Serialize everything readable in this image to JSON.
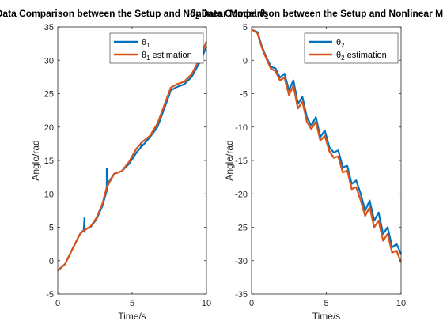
{
  "chart_data": [
    {
      "type": "line",
      "title_pre": "Data Comparison between the Setup and Nonlinear Model",
      "title_symbol": "θ",
      "title_sub": "1",
      "title_post": "",
      "xlabel": "Time/s",
      "ylabel": "Angle/rad",
      "xlim": [
        0,
        10
      ],
      "ylim": [
        -5,
        35
      ],
      "xticks": [
        0,
        5,
        10
      ],
      "yticks": [
        -5,
        0,
        5,
        10,
        15,
        20,
        25,
        30,
        35
      ],
      "legend_position": "top-right",
      "series": [
        {
          "name_symbol": "θ",
          "name_sub": "1",
          "name_rest": "",
          "color": "#0072BD",
          "x": [
            0,
            0.5,
            1.0,
            1.5,
            1.75,
            1.8,
            1.8,
            1.85,
            2.2,
            2.6,
            3.0,
            3.3,
            3.3,
            3.35,
            3.8,
            4.3,
            4.8,
            5.3,
            5.6,
            5.6,
            5.7,
            6.2,
            6.7,
            7.2,
            7.6,
            8.0,
            8.5,
            9.0,
            9.5,
            10.0
          ],
          "y": [
            -1.5,
            -0.5,
            1.8,
            4.0,
            4.6,
            6.4,
            4.3,
            4.7,
            5.0,
            6.2,
            8.2,
            10.5,
            13.8,
            11.5,
            13.0,
            13.4,
            14.5,
            16.2,
            17.0,
            17.6,
            17.2,
            18.5,
            20.0,
            23.0,
            25.5,
            26.0,
            26.4,
            27.5,
            29.5,
            32.0
          ]
        },
        {
          "name_symbol": "θ",
          "name_sub": "1",
          "name_rest": " estimation",
          "color": "#D95319",
          "x": [
            0,
            0.5,
            1.0,
            1.5,
            1.8,
            2.2,
            2.6,
            3.0,
            3.3,
            3.8,
            4.3,
            4.8,
            5.3,
            5.7,
            6.2,
            6.7,
            7.2,
            7.6,
            8.0,
            8.5,
            9.0,
            9.5,
            10.0
          ],
          "y": [
            -1.5,
            -0.5,
            1.8,
            4.0,
            4.6,
            5.1,
            6.4,
            8.5,
            11.0,
            13.0,
            13.4,
            14.8,
            16.8,
            17.8,
            18.7,
            20.5,
            23.5,
            25.9,
            26.4,
            26.8,
            27.9,
            30.0,
            32.8
          ]
        }
      ]
    },
    {
      "type": "line",
      "title_pre": "",
      "title_symbol": "θ",
      "title_sub": "2",
      "title_post": " Data Comparison between the Setup and Nonlinear Model",
      "xlabel": "Time/s",
      "ylabel": "Angle/rad",
      "xlim": [
        0,
        10
      ],
      "ylim": [
        -35,
        5
      ],
      "xticks": [
        0,
        5,
        10
      ],
      "yticks": [
        -35,
        -30,
        -25,
        -20,
        -15,
        -10,
        -5,
        0,
        5
      ],
      "legend_position": "top-right",
      "series": [
        {
          "name_symbol": "θ",
          "name_sub": "2",
          "name_rest": "",
          "color": "#0072BD",
          "x": [
            0,
            0.1,
            0.4,
            0.7,
            1.0,
            1.3,
            1.6,
            1.9,
            2.2,
            2.5,
            2.8,
            3.1,
            3.4,
            3.7,
            4.0,
            4.3,
            4.6,
            4.9,
            5.2,
            5.5,
            5.8,
            6.1,
            6.4,
            6.7,
            7.0,
            7.3,
            7.6,
            7.9,
            8.2,
            8.5,
            8.8,
            9.1,
            9.4,
            9.7,
            10.0
          ],
          "y": [
            4.5,
            4.5,
            4.2,
            2.0,
            0.4,
            -1.0,
            -1.2,
            -2.6,
            -2.0,
            -4.5,
            -3.0,
            -6.5,
            -5.5,
            -8.5,
            -9.8,
            -8.5,
            -11.5,
            -10.5,
            -13.0,
            -13.8,
            -13.5,
            -16.0,
            -15.8,
            -18.5,
            -18.0,
            -20.0,
            -22.5,
            -21.0,
            -24.0,
            -22.8,
            -26.0,
            -25.0,
            -28.0,
            -27.5,
            -29.0
          ]
        },
        {
          "name_symbol": "θ",
          "name_sub": "2",
          "name_rest": " estimation",
          "color": "#D95319",
          "x": [
            0,
            0.1,
            0.4,
            0.7,
            1.0,
            1.3,
            1.6,
            1.9,
            2.2,
            2.5,
            2.8,
            3.1,
            3.4,
            3.7,
            4.0,
            4.3,
            4.6,
            4.9,
            5.2,
            5.5,
            5.8,
            6.1,
            6.4,
            6.7,
            7.0,
            7.3,
            7.6,
            7.9,
            8.2,
            8.5,
            8.8,
            9.1,
            9.4,
            9.7,
            10.0
          ],
          "y": [
            4.5,
            4.5,
            4.0,
            1.8,
            0.2,
            -1.3,
            -1.6,
            -3.0,
            -2.6,
            -5.2,
            -3.8,
            -7.2,
            -6.2,
            -9.2,
            -10.3,
            -9.2,
            -12.0,
            -11.3,
            -13.6,
            -14.6,
            -14.4,
            -16.8,
            -16.5,
            -19.3,
            -19.0,
            -21.0,
            -23.3,
            -22.0,
            -25.0,
            -24.0,
            -27.0,
            -26.0,
            -28.8,
            -28.5,
            -30.3
          ]
        }
      ]
    }
  ]
}
